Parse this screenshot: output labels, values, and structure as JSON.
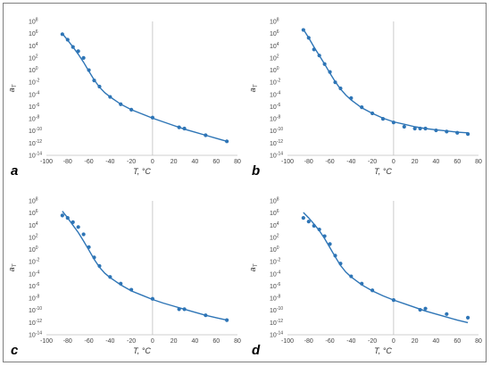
{
  "chart_data": [
    {
      "panel_label": "a",
      "type": "scatter",
      "xlabel": "T, °C",
      "ylabel": "aT",
      "xlim": [
        -100,
        80
      ],
      "ylim_log10": [
        -14,
        8
      ],
      "log_y": true,
      "x_ticks": [
        "-100",
        "-80",
        "-60",
        "-40",
        "-20",
        "0",
        "20",
        "40",
        "60",
        "80"
      ],
      "y_ticks": [
        "10-14",
        "10-12",
        "10-10",
        "10-8",
        "10-6",
        "10-4",
        "10-2",
        "100",
        "102",
        "104",
        "106",
        "108"
      ],
      "grid": false,
      "series": [
        {
          "kind": "points",
          "color": "#2e75b6",
          "x": [
            -85,
            -80,
            -75,
            -70,
            -65,
            -60,
            -55,
            -50,
            -40,
            -30,
            -20,
            0,
            25,
            30,
            50,
            70
          ],
          "y_log10": [
            5.9,
            5.0,
            3.8,
            3.1,
            2.0,
            0.0,
            -1.7,
            -2.7,
            -4.4,
            -5.6,
            -6.5,
            -7.8,
            -9.4,
            -9.6,
            -10.7,
            -11.7
          ]
        },
        {
          "kind": "fit",
          "color": "#2e75b6",
          "x": [
            -85,
            -80,
            -75,
            -70,
            -65,
            -60,
            -55,
            -50,
            -45,
            -40,
            -30,
            -20,
            -10,
            0,
            10,
            20,
            30,
            40,
            50,
            60,
            70
          ],
          "y_log10": [
            6.0,
            4.9,
            3.8,
            2.6,
            1.3,
            -0.2,
            -1.6,
            -2.8,
            -3.7,
            -4.4,
            -5.6,
            -6.5,
            -7.2,
            -7.9,
            -8.5,
            -9.1,
            -9.7,
            -10.2,
            -10.7,
            -11.2,
            -11.7
          ]
        }
      ]
    },
    {
      "panel_label": "b",
      "type": "scatter",
      "xlabel": "T, °C",
      "ylabel": "aT",
      "xlim": [
        -100,
        80
      ],
      "ylim_log10": [
        -14,
        8
      ],
      "log_y": true,
      "x_ticks": [
        "-100",
        "-80",
        "-60",
        "-40",
        "-20",
        "0",
        "20",
        "40",
        "60",
        "80"
      ],
      "y_ticks": [
        "10-14",
        "10-12",
        "10-10",
        "10-8",
        "10-6",
        "10-4",
        "10-2",
        "100",
        "102",
        "104",
        "106",
        "108"
      ],
      "grid": false,
      "series": [
        {
          "kind": "points",
          "color": "#2e75b6",
          "x": [
            -85,
            -80,
            -75,
            -70,
            -65,
            -60,
            -55,
            -50,
            -40,
            -30,
            -20,
            -10,
            0,
            10,
            20,
            25,
            30,
            40,
            50,
            60,
            70
          ],
          "y_log10": [
            6.6,
            5.3,
            3.4,
            2.4,
            1.0,
            -0.3,
            -2.0,
            -3.0,
            -4.6,
            -6.1,
            -7.1,
            -8.0,
            -8.6,
            -9.3,
            -9.6,
            -9.6,
            -9.6,
            -9.9,
            -10.1,
            -10.3,
            -10.5
          ]
        },
        {
          "kind": "fit",
          "color": "#2e75b6",
          "x": [
            -85,
            -80,
            -75,
            -70,
            -65,
            -60,
            -55,
            -50,
            -45,
            -40,
            -30,
            -20,
            -10,
            0,
            10,
            20,
            30,
            40,
            50,
            60,
            70
          ],
          "y_log10": [
            6.7,
            5.3,
            3.8,
            2.4,
            1.0,
            -0.5,
            -1.9,
            -3.1,
            -4.1,
            -4.9,
            -6.2,
            -7.1,
            -7.9,
            -8.5,
            -8.9,
            -9.3,
            -9.6,
            -9.8,
            -10.0,
            -10.2,
            -10.3
          ]
        }
      ]
    },
    {
      "panel_label": "c",
      "type": "scatter",
      "xlabel": "T, °C",
      "ylabel": "aT",
      "xlim": [
        -100,
        80
      ],
      "ylim_log10": [
        -14,
        8
      ],
      "log_y": true,
      "x_ticks": [
        "-100",
        "-80",
        "-60",
        "-40",
        "-20",
        "0",
        "20",
        "40",
        "60",
        "80"
      ],
      "y_ticks": [
        "10-14",
        "10-12",
        "10-10",
        "10-8",
        "10-6",
        "10-4",
        "10-2",
        "100",
        "102",
        "104",
        "106",
        "108"
      ],
      "grid": false,
      "series": [
        {
          "kind": "points",
          "color": "#2e75b6",
          "x": [
            -85,
            -80,
            -75,
            -70,
            -65,
            -60,
            -55,
            -50,
            -40,
            -30,
            -20,
            0,
            25,
            30,
            50,
            70
          ],
          "y_log10": [
            5.6,
            5.2,
            4.5,
            3.7,
            2.5,
            0.4,
            -1.3,
            -2.7,
            -4.5,
            -5.6,
            -6.6,
            -8.1,
            -9.8,
            -9.8,
            -10.8,
            -11.6
          ]
        },
        {
          "kind": "fit",
          "color": "#2e75b6",
          "x": [
            -85,
            -80,
            -75,
            -70,
            -65,
            -60,
            -55,
            -50,
            -45,
            -40,
            -30,
            -20,
            -10,
            0,
            10,
            20,
            30,
            40,
            50,
            60,
            70
          ],
          "y_log10": [
            6.3,
            5.2,
            4.0,
            2.8,
            1.4,
            -0.1,
            -1.6,
            -2.9,
            -3.9,
            -4.6,
            -5.8,
            -6.8,
            -7.5,
            -8.2,
            -8.8,
            -9.3,
            -9.8,
            -10.3,
            -10.8,
            -11.2,
            -11.6
          ]
        }
      ]
    },
    {
      "panel_label": "d",
      "type": "scatter",
      "xlabel": "T, °C",
      "ylabel": "aT",
      "xlim": [
        -100,
        80
      ],
      "ylim_log10": [
        -14,
        8
      ],
      "log_y": true,
      "x_ticks": [
        "-100",
        "-80",
        "-60",
        "-40",
        "-20",
        "0",
        "20",
        "40",
        "60",
        "80"
      ],
      "y_ticks": [
        "10-14",
        "10-12",
        "10-10",
        "10-8",
        "10-6",
        "10-4",
        "10-2",
        "100",
        "102",
        "104",
        "106",
        "108"
      ],
      "grid": false,
      "series": [
        {
          "kind": "points",
          "color": "#2e75b6",
          "x": [
            -85,
            -80,
            -75,
            -70,
            -65,
            -60,
            -55,
            -50,
            -40,
            -30,
            -20,
            0,
            25,
            30,
            50,
            70
          ],
          "y_log10": [
            5.2,
            4.6,
            3.9,
            3.3,
            2.2,
            0.9,
            -1.0,
            -2.3,
            -4.4,
            -5.6,
            -6.7,
            -8.3,
            -9.9,
            -9.7,
            -10.6,
            -11.2
          ]
        },
        {
          "kind": "fit",
          "color": "#2e75b6",
          "x": [
            -85,
            -80,
            -75,
            -70,
            -65,
            -60,
            -55,
            -50,
            -45,
            -40,
            -30,
            -20,
            -10,
            0,
            10,
            20,
            30,
            40,
            50,
            60,
            70
          ],
          "y_log10": [
            6.1,
            5.2,
            4.2,
            3.1,
            1.8,
            0.3,
            -1.2,
            -2.6,
            -3.7,
            -4.5,
            -5.8,
            -6.8,
            -7.6,
            -8.3,
            -8.9,
            -9.5,
            -10.1,
            -10.6,
            -11.1,
            -11.6,
            -12.0
          ]
        }
      ]
    }
  ]
}
